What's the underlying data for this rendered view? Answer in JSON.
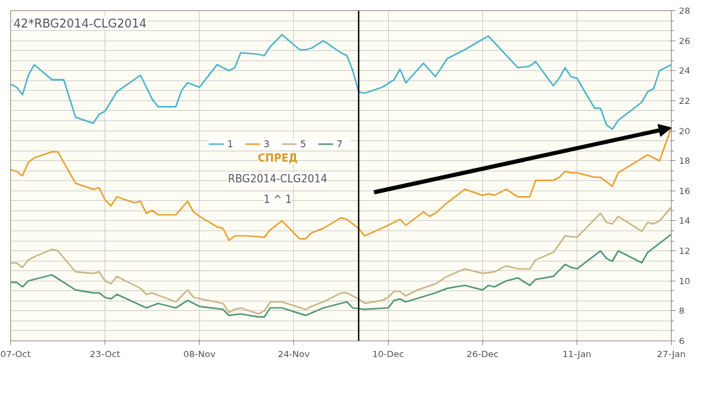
{
  "chart_data": {
    "type": "line",
    "title": "42*RBG2014-CLG2014",
    "legend_title": "СПРЕД",
    "annotations": [
      "RBG2014-CLG2014",
      "1 ^ 1"
    ],
    "series": [
      {
        "name": "1",
        "color": "#4bb3c8",
        "x": [
          "2013-10-07",
          "2013-10-08",
          "2013-10-09",
          "2013-10-10",
          "2013-10-11",
          "2013-10-14",
          "2013-10-16",
          "2013-10-18",
          "2013-10-21",
          "2013-10-22",
          "2013-10-23",
          "2013-10-25",
          "2013-10-29",
          "2013-10-31",
          "2013-11-01",
          "2013-11-04",
          "2013-11-05",
          "2013-11-06",
          "2013-11-08",
          "2013-11-11",
          "2013-11-13",
          "2013-11-14",
          "2013-11-15",
          "2013-11-18",
          "2013-11-19",
          "2013-11-20",
          "2013-11-22",
          "2013-11-25",
          "2013-11-26",
          "2013-11-27",
          "2013-11-29",
          "2013-12-02",
          "2013-12-03",
          "2013-12-04",
          "2013-12-05",
          "2013-12-06",
          "2013-12-09",
          "2013-12-11",
          "2013-12-12",
          "2013-12-13",
          "2013-12-16",
          "2013-12-18",
          "2013-12-20",
          "2013-12-23",
          "2013-12-26",
          "2013-12-27",
          "2014-01-01",
          "2014-01-03",
          "2014-01-04",
          "2014-01-07",
          "2014-01-08",
          "2014-01-09",
          "2014-01-10",
          "2014-01-11",
          "2014-01-14",
          "2014-01-15",
          "2014-01-16",
          "2014-01-17",
          "2014-01-18",
          "2014-01-22",
          "2014-01-23",
          "2014-01-24",
          "2014-01-25",
          "2014-01-27"
        ],
        "values": [
          23.1,
          22.9,
          22.4,
          23.7,
          24.4,
          23.4,
          23.4,
          20.9,
          20.5,
          21.1,
          21.3,
          22.6,
          23.7,
          22.1,
          21.6,
          21.6,
          22.7,
          23.2,
          22.9,
          24.4,
          24.0,
          24.2,
          25.2,
          25.1,
          25.0,
          25.6,
          26.4,
          25.4,
          25.4,
          25.5,
          26.0,
          25.2,
          25.0,
          24.0,
          22.6,
          22.5,
          22.9,
          23.4,
          24.1,
          23.2,
          24.5,
          23.6,
          24.8,
          25.4,
          26.1,
          26.3,
          24.2,
          24.3,
          24.6,
          23.0,
          23.5,
          24.2,
          23.6,
          23.5,
          21.5,
          21.5,
          20.4,
          20.1,
          20.7,
          21.9,
          22.6,
          22.8,
          24.0,
          24.4
        ]
      },
      {
        "name": "3",
        "color": "#e8a030",
        "x": [
          "2013-10-07",
          "2013-10-08",
          "2013-10-09",
          "2013-10-10",
          "2013-10-11",
          "2013-10-14",
          "2013-10-15",
          "2013-10-18",
          "2013-10-21",
          "2013-10-22",
          "2013-10-23",
          "2013-10-24",
          "2013-10-25",
          "2013-10-28",
          "2013-10-29",
          "2013-10-30",
          "2013-10-31",
          "2013-11-01",
          "2013-11-04",
          "2013-11-06",
          "2013-11-07",
          "2013-11-08",
          "2013-11-11",
          "2013-11-12",
          "2013-11-13",
          "2013-11-14",
          "2013-11-16",
          "2013-11-19",
          "2013-11-20",
          "2013-11-22",
          "2013-11-25",
          "2013-11-26",
          "2013-11-27",
          "2013-11-29",
          "2013-12-02",
          "2013-12-03",
          "2013-12-05",
          "2013-12-06",
          "2013-12-10",
          "2013-12-12",
          "2013-12-13",
          "2013-12-16",
          "2013-12-17",
          "2013-12-18",
          "2013-12-20",
          "2013-12-23",
          "2013-12-26",
          "2013-12-27",
          "2013-12-28",
          "2013-12-30",
          "2014-01-01",
          "2014-01-03",
          "2014-01-04",
          "2014-01-07",
          "2014-01-08",
          "2014-01-09",
          "2014-01-10",
          "2014-01-11",
          "2014-01-14",
          "2014-01-15",
          "2014-01-17",
          "2014-01-18",
          "2014-01-23",
          "2014-01-25",
          "2014-01-27"
        ],
        "values": [
          17.4,
          17.3,
          17.0,
          17.9,
          18.2,
          18.6,
          18.6,
          16.5,
          16.1,
          16.2,
          15.4,
          15.0,
          15.6,
          15.2,
          15.3,
          14.5,
          14.7,
          14.4,
          14.4,
          15.3,
          14.6,
          14.3,
          13.6,
          13.5,
          12.7,
          13.0,
          13.0,
          12.9,
          13.4,
          14.0,
          12.8,
          12.8,
          13.2,
          13.5,
          14.2,
          14.1,
          13.5,
          13.0,
          13.7,
          14.1,
          13.7,
          14.6,
          14.3,
          14.5,
          15.2,
          16.1,
          15.7,
          15.8,
          15.7,
          16.1,
          15.6,
          15.6,
          16.7,
          16.7,
          16.9,
          17.3,
          17.2,
          17.2,
          16.9,
          16.9,
          16.3,
          17.2,
          18.4,
          18.0,
          20.2
        ]
      },
      {
        "name": "5",
        "color": "#c8b483",
        "x": [
          "2013-10-07",
          "2013-10-08",
          "2013-10-09",
          "2013-10-10",
          "2013-10-11",
          "2013-10-14",
          "2013-10-15",
          "2013-10-18",
          "2013-10-21",
          "2013-10-22",
          "2013-10-23",
          "2013-10-24",
          "2013-10-25",
          "2013-10-29",
          "2013-10-30",
          "2013-10-31",
          "2013-11-04",
          "2013-11-06",
          "2013-11-07",
          "2013-11-12",
          "2013-11-13",
          "2013-11-14",
          "2013-11-15",
          "2013-11-18",
          "2013-11-19",
          "2013-11-20",
          "2013-11-22",
          "2013-11-26",
          "2013-11-27",
          "2013-11-29",
          "2013-12-02",
          "2013-12-03",
          "2013-12-05",
          "2013-12-06",
          "2013-12-09",
          "2013-12-10",
          "2013-12-11",
          "2013-12-12",
          "2013-12-13",
          "2013-12-15",
          "2013-12-18",
          "2013-12-20",
          "2013-12-23",
          "2013-12-26",
          "2013-12-28",
          "2013-12-30",
          "2014-01-01",
          "2014-01-03",
          "2014-01-04",
          "2014-01-07",
          "2014-01-09",
          "2014-01-11",
          "2014-01-15",
          "2014-01-16",
          "2014-01-17",
          "2014-01-18",
          "2014-01-22",
          "2014-01-23",
          "2014-01-24",
          "2014-01-25",
          "2014-01-27"
        ],
        "values": [
          11.2,
          11.2,
          10.9,
          11.4,
          11.6,
          12.1,
          12.0,
          10.6,
          10.5,
          10.6,
          10.0,
          9.8,
          10.3,
          9.5,
          9.1,
          9.2,
          8.6,
          9.4,
          8.9,
          8.5,
          7.9,
          8.1,
          8.2,
          7.8,
          8.0,
          8.6,
          8.6,
          8.1,
          8.3,
          8.6,
          9.2,
          9.2,
          8.8,
          8.5,
          8.7,
          8.9,
          9.3,
          9.3,
          9.0,
          9.4,
          9.8,
          10.3,
          10.8,
          10.5,
          10.6,
          11.0,
          10.8,
          10.8,
          11.4,
          11.9,
          13.0,
          12.9,
          14.5,
          13.9,
          13.8,
          14.3,
          13.3,
          13.9,
          13.8,
          14.0,
          14.9
        ]
      },
      {
        "name": "7",
        "color": "#4e9474",
        "x": [
          "2013-10-07",
          "2013-10-08",
          "2013-10-09",
          "2013-10-10",
          "2013-10-11",
          "2013-10-14",
          "2013-10-18",
          "2013-10-21",
          "2013-10-22",
          "2013-10-23",
          "2013-10-24",
          "2013-10-25",
          "2013-10-30",
          "2013-11-01",
          "2013-11-04",
          "2013-11-06",
          "2013-11-08",
          "2013-11-12",
          "2013-11-13",
          "2013-11-15",
          "2013-11-18",
          "2013-11-19",
          "2013-11-20",
          "2013-11-22",
          "2013-11-26",
          "2013-11-29",
          "2013-12-03",
          "2013-12-04",
          "2013-12-06",
          "2013-12-10",
          "2013-12-11",
          "2013-12-12",
          "2013-12-13",
          "2013-12-18",
          "2013-12-20",
          "2013-12-23",
          "2013-12-26",
          "2013-12-27",
          "2013-12-28",
          "2013-12-30",
          "2014-01-01",
          "2014-01-03",
          "2014-01-04",
          "2014-01-07",
          "2014-01-09",
          "2014-01-10",
          "2014-01-11",
          "2014-01-15",
          "2014-01-16",
          "2014-01-17",
          "2014-01-18",
          "2014-01-22",
          "2014-01-23",
          "2014-01-27"
        ],
        "values": [
          9.9,
          9.9,
          9.6,
          10.0,
          10.1,
          10.4,
          9.4,
          9.2,
          9.2,
          8.9,
          8.8,
          9.1,
          8.2,
          8.5,
          8.2,
          8.7,
          8.3,
          8.1,
          7.7,
          7.8,
          7.6,
          7.6,
          8.2,
          8.2,
          7.7,
          8.2,
          8.6,
          8.2,
          8.1,
          8.2,
          8.7,
          8.8,
          8.6,
          9.2,
          9.5,
          9.7,
          9.4,
          9.7,
          9.6,
          10.0,
          10.2,
          9.7,
          10.1,
          10.3,
          11.1,
          10.9,
          10.8,
          12.0,
          11.5,
          11.3,
          12.0,
          11.2,
          11.9,
          13.1
        ]
      }
    ],
    "ref_lines": [
      {
        "axis": "x",
        "value": "2013-12-05",
        "color": "#000000"
      }
    ],
    "xlim": [
      "2013-10-07",
      "2014-01-27"
    ],
    "xticks": [
      {
        "value": "2013-10-07",
        "label": "07-Oct"
      },
      {
        "value": "2013-10-23",
        "label": "23-Oct"
      },
      {
        "value": "2013-11-08",
        "label": "08-Nov"
      },
      {
        "value": "2013-11-24",
        "label": "24-Nov"
      },
      {
        "value": "2013-12-10",
        "label": "10-Dec"
      },
      {
        "value": "2013-12-26",
        "label": "26-Dec"
      },
      {
        "value": "2014-01-11",
        "label": "11-Jan"
      },
      {
        "value": "2014-01-27",
        "label": "27-Jan"
      }
    ],
    "ylim": [
      6,
      28
    ],
    "yticks": [
      6,
      {
        "value": 6.667,
        "label": null
      },
      {
        "value": 7.333,
        "label": null
      },
      8,
      {
        "value": 8.667,
        "label": null
      },
      {
        "value": 9.333,
        "label": null
      },
      10,
      {
        "value": 10.667,
        "label": null
      },
      {
        "value": 11.333,
        "label": null
      },
      12,
      {
        "value": 12.667,
        "label": null
      },
      {
        "value": 13.333,
        "label": null
      },
      14,
      {
        "value": 14.667,
        "label": null
      },
      {
        "value": 15.333,
        "label": null
      },
      16,
      {
        "value": 16.667,
        "label": null
      },
      {
        "value": 17.333,
        "label": null
      },
      18,
      {
        "value": 18.667,
        "label": null
      },
      {
        "value": 19.333,
        "label": null
      },
      20,
      {
        "value": 20.667,
        "label": null
      },
      {
        "value": 21.333,
        "label": null
      },
      22,
      {
        "value": 22.667,
        "label": null
      },
      {
        "value": 23.333,
        "label": null
      },
      24,
      {
        "value": 24.667,
        "label": null
      },
      {
        "value": 25.333,
        "label": null
      },
      26,
      {
        "value": 26.667,
        "label": null
      },
      {
        "value": 27.333,
        "label": null
      },
      28
    ],
    "grid": true,
    "legend": "center",
    "marker": "none",
    "line_style": "solid"
  }
}
